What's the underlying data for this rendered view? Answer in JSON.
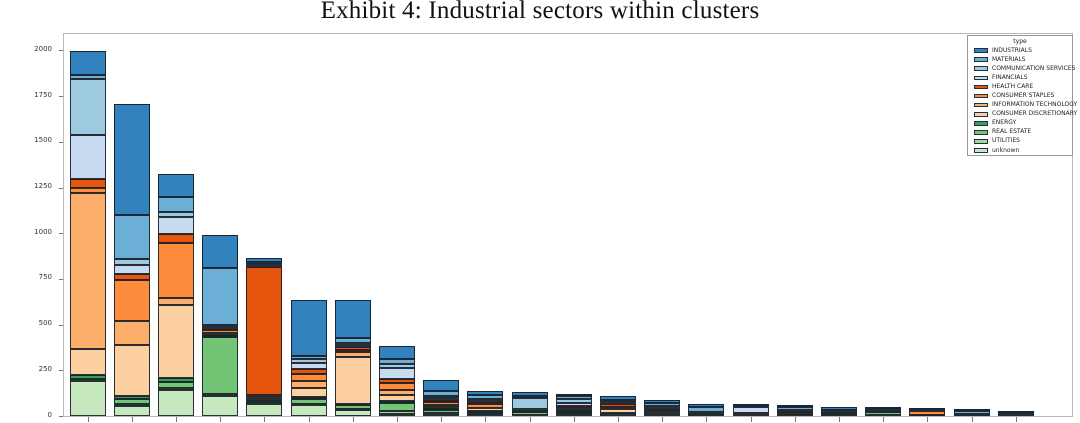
{
  "title": "Exhibit 4: Industrial sectors within clusters",
  "legend": {
    "title": "type"
  },
  "y_axis": {
    "tick_labels": [
      "0",
      "250",
      "500",
      "750",
      "1000",
      "1250",
      "1500",
      "1750",
      "2000"
    ]
  },
  "chart_data": {
    "type": "bar",
    "subtype": "stacked-vertical",
    "title": "Exhibit 4: Industrial sectors within clusters",
    "n_bars": 22,
    "x_tick_labels_visible": false,
    "xlabel": "",
    "ylabel": "",
    "ylim": [
      0,
      2090
    ],
    "y_ticks": [
      0,
      250,
      500,
      750,
      1000,
      1250,
      1500,
      1750,
      2000
    ],
    "grid": false,
    "legend_title": "type",
    "legend_position": "upper-right",
    "stack_note": "series listed top-of-stack first; bars stack bottom-to-top in reverse of this order",
    "series": [
      {
        "name": "INDUSTRIALS",
        "color": "#3182bd",
        "values": [
          131,
          607,
          127,
          182,
          19,
          306,
          209,
          73,
          64,
          22,
          19,
          16,
          23,
          14,
          14,
          4,
          10,
          12,
          14,
          2,
          6,
          5
        ]
      },
      {
        "name": "MATERIALS",
        "color": "#6baed6",
        "values": [
          25,
          242,
          84,
          315,
          14,
          18,
          27,
          27,
          27,
          22,
          11,
          15,
          13,
          19,
          27,
          4,
          12,
          5,
          4,
          2,
          12,
          8
        ]
      },
      {
        "name": "COMMUNICATION SERVICES",
        "color": "#9ecae1",
        "values": [
          306,
          31,
          27,
          10,
          6,
          18,
          10,
          22,
          10,
          10,
          62,
          20,
          5,
          6,
          4,
          5,
          3,
          4,
          0,
          0,
          0,
          3
        ]
      },
      {
        "name": "FINANCIALS",
        "color": "#c6dbef",
        "values": [
          240,
          51,
          91,
          8,
          10,
          36,
          12,
          60,
          12,
          8,
          3,
          18,
          5,
          12,
          3,
          30,
          3,
          4,
          3,
          2,
          3,
          2
        ]
      },
      {
        "name": "HEALTH CARE",
        "color": "#e6550d",
        "values": [
          49,
          33,
          50,
          10,
          697,
          24,
          15,
          24,
          10,
          10,
          3,
          6,
          12,
          4,
          2,
          0,
          11,
          2,
          2,
          4,
          2,
          0
        ]
      },
      {
        "name": "CONSUMER STAPLES",
        "color": "#fd8d3c",
        "values": [
          30,
          222,
          300,
          12,
          8,
          40,
          10,
          36,
          16,
          19,
          2,
          6,
          8,
          4,
          2,
          6,
          2,
          2,
          2,
          18,
          2,
          0
        ]
      },
      {
        "name": "INFORMATION TECHNOLOGY",
        "color": "#fdae6b",
        "values": [
          850,
          131,
          36,
          6,
          8,
          37,
          30,
          26,
          8,
          4,
          2,
          5,
          5,
          4,
          2,
          4,
          2,
          0,
          0,
          4,
          0,
          0
        ]
      },
      {
        "name": "CONSUMER DISCRETIONARY",
        "color": "#fdd0a2",
        "values": [
          145,
          278,
          400,
          5,
          15,
          49,
          254,
          36,
          8,
          14,
          2,
          5,
          20,
          12,
          2,
          0,
          2,
          2,
          0,
          0,
          0,
          0
        ]
      },
      {
        "name": "ENERGY",
        "color": "#31a354",
        "values": [
          18,
          18,
          25,
          15,
          6,
          15,
          8,
          11,
          12,
          5,
          5,
          8,
          5,
          3,
          3,
          2,
          6,
          3,
          4,
          2,
          2,
          2
        ]
      },
      {
        "name": "REAL ESTATE",
        "color": "#74c476",
        "values": [
          5,
          27,
          30,
          310,
          10,
          24,
          20,
          40,
          18,
          12,
          12,
          14,
          7,
          5,
          3,
          2,
          3,
          10,
          16,
          0,
          2,
          0
        ]
      },
      {
        "name": "UTILITIES",
        "color": "#a1d99b",
        "values": [
          10,
          10,
          10,
          10,
          5,
          7,
          5,
          20,
          5,
          3,
          2,
          2,
          2,
          1,
          1,
          1,
          1,
          1,
          3,
          0,
          1,
          2
        ]
      },
      {
        "name": "unknown",
        "color": "#c7e9c0",
        "values": [
          190,
          57,
          145,
          110,
          65,
          60,
          35,
          10,
          9,
          8,
          6,
          8,
          5,
          3,
          2,
          2,
          2,
          2,
          2,
          2,
          1,
          2
        ]
      }
    ]
  }
}
